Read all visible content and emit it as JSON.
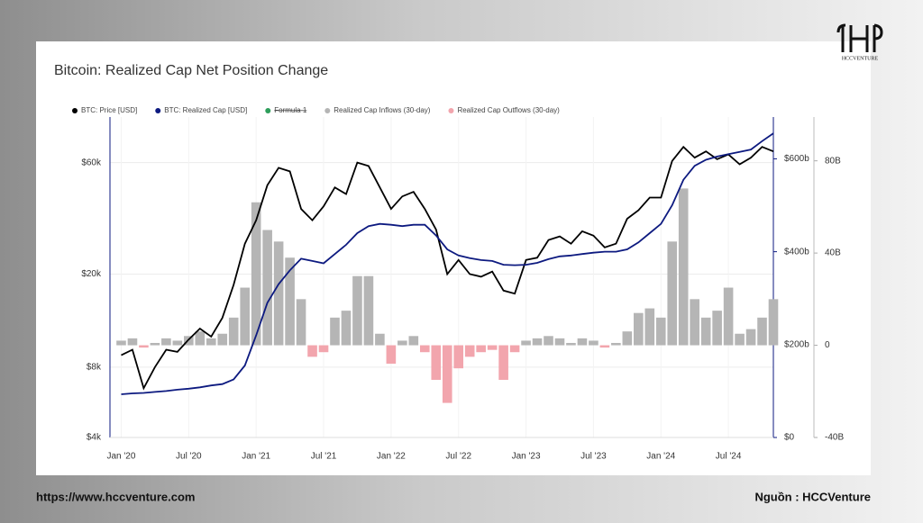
{
  "brand": "HCCVENTURE",
  "footer_left": "https://www.hccventure.com",
  "footer_right": "Nguồn : HCCVenture",
  "chart_data": {
    "type": "combo",
    "title": "Bitcoin: Realized Cap Net Position Change",
    "x": [
      "2020-01",
      "2020-02",
      "2020-03",
      "2020-04",
      "2020-05",
      "2020-06",
      "2020-07",
      "2020-08",
      "2020-09",
      "2020-10",
      "2020-11",
      "2020-12",
      "2021-01",
      "2021-02",
      "2021-03",
      "2021-04",
      "2021-05",
      "2021-06",
      "2021-07",
      "2021-08",
      "2021-09",
      "2021-10",
      "2021-11",
      "2021-12",
      "2022-01",
      "2022-02",
      "2022-03",
      "2022-04",
      "2022-05",
      "2022-06",
      "2022-07",
      "2022-08",
      "2022-09",
      "2022-10",
      "2022-11",
      "2022-12",
      "2023-01",
      "2023-02",
      "2023-03",
      "2023-04",
      "2023-05",
      "2023-06",
      "2023-07",
      "2023-08",
      "2023-09",
      "2023-10",
      "2023-11",
      "2023-12",
      "2024-01",
      "2024-02",
      "2024-03",
      "2024-04",
      "2024-05",
      "2024-06",
      "2024-07",
      "2024-08",
      "2024-09",
      "2024-10",
      "2024-11"
    ],
    "xlim": [
      "2019-12",
      "2024-11"
    ],
    "xticks": [
      {
        "value": "2020-01",
        "label": "Jan '20"
      },
      {
        "value": "2020-07",
        "label": "Jul '20"
      },
      {
        "value": "2021-01",
        "label": "Jan '21"
      },
      {
        "value": "2021-07",
        "label": "Jul '21"
      },
      {
        "value": "2022-01",
        "label": "Jan '22"
      },
      {
        "value": "2022-07",
        "label": "Jul '22"
      },
      {
        "value": "2023-01",
        "label": "Jan '23"
      },
      {
        "value": "2023-07",
        "label": "Jul '23"
      },
      {
        "value": "2024-01",
        "label": "Jan '24"
      },
      {
        "value": "2024-07",
        "label": "Jul '24"
      }
    ],
    "ylim": [
      4000,
      94000
    ],
    "ylog": true,
    "yticks": [
      {
        "value": 4000,
        "label": "$4k"
      },
      {
        "value": 8000,
        "label": "$8k"
      },
      {
        "value": 20000,
        "label": "$20k"
      },
      {
        "value": 60000,
        "label": "$60k"
      }
    ],
    "y2lim": [
      0,
      690
    ],
    "y2ticks": [
      {
        "value": 0,
        "label": "$0"
      },
      {
        "value": 200,
        "label": "$200b"
      },
      {
        "value": 400,
        "label": "$400b"
      },
      {
        "value": 600,
        "label": "$600b"
      }
    ],
    "y3lim": [
      -40,
      99
    ],
    "y3ticks": [
      {
        "value": -40,
        "label": "-40B"
      },
      0,
      {
        "value": 40,
        "label": "40B"
      },
      {
        "value": 80,
        "label": "80B"
      }
    ],
    "grid": true,
    "series": [
      {
        "name": "BTC: Price [USD]",
        "color": "#000000",
        "kind": "line",
        "axis": "y",
        "values": [
          9000,
          9500,
          6500,
          8000,
          9500,
          9300,
          10500,
          11700,
          10800,
          13000,
          18000,
          27000,
          34000,
          48000,
          57000,
          55000,
          38000,
          34000,
          39000,
          47000,
          44000,
          60000,
          58000,
          47000,
          38000,
          43000,
          45000,
          38000,
          31000,
          20000,
          23000,
          20000,
          19500,
          20500,
          17000,
          16500,
          23000,
          23500,
          28000,
          29000,
          27000,
          30500,
          29200,
          26000,
          27000,
          34500,
          37500,
          42500,
          42500,
          61000,
          70000,
          63000,
          67000,
          62000,
          65000,
          59000,
          63000,
          70000,
          67000
        ]
      },
      {
        "name": "BTC: Realized Cap [USD]",
        "color": "#0d1a80",
        "kind": "line",
        "axis": "y2",
        "values": [
          93,
          95,
          96,
          98,
          100,
          103,
          105,
          108,
          112,
          115,
          125,
          155,
          220,
          290,
          330,
          360,
          385,
          380,
          375,
          395,
          415,
          440,
          455,
          460,
          458,
          455,
          458,
          458,
          435,
          405,
          392,
          386,
          382,
          380,
          372,
          371,
          372,
          376,
          384,
          390,
          392,
          395,
          398,
          400,
          400,
          405,
          420,
          440,
          460,
          500,
          555,
          585,
          598,
          605,
          610,
          615,
          620,
          638,
          655
        ]
      },
      {
        "name": "Formula 1",
        "color": "#2e9e5b",
        "kind": "hidden"
      },
      {
        "name": "Realized Cap Inflows (30-day)",
        "color": "#b5b5b5",
        "kind": "bar",
        "axis": "y3",
        "values": [
          2,
          3,
          null,
          1,
          3,
          2,
          4,
          6,
          3,
          5,
          12,
          25,
          62,
          50,
          45,
          38,
          20,
          null,
          null,
          12,
          15,
          30,
          30,
          5,
          null,
          2,
          4,
          null,
          null,
          null,
          null,
          null,
          null,
          null,
          null,
          null,
          2,
          3,
          4,
          3,
          1,
          3,
          2,
          null,
          1,
          6,
          14,
          16,
          12,
          45,
          68,
          20,
          12,
          15,
          25,
          5,
          7,
          12,
          20
        ]
      },
      {
        "name": "Realized Cap Outflows (30-day)",
        "color": "#f2a5ad",
        "kind": "bar",
        "axis": "y3",
        "values": [
          null,
          null,
          -1,
          null,
          null,
          null,
          null,
          null,
          null,
          null,
          null,
          null,
          null,
          null,
          null,
          null,
          null,
          -5,
          -3,
          null,
          null,
          null,
          null,
          null,
          -8,
          null,
          null,
          -3,
          -15,
          -25,
          -10,
          -5,
          -3,
          -2,
          -15,
          -3,
          null,
          null,
          null,
          null,
          null,
          null,
          null,
          -1,
          null,
          null,
          null,
          null,
          null,
          null,
          null,
          null,
          null,
          null,
          null,
          null,
          null,
          null,
          null
        ]
      }
    ]
  }
}
